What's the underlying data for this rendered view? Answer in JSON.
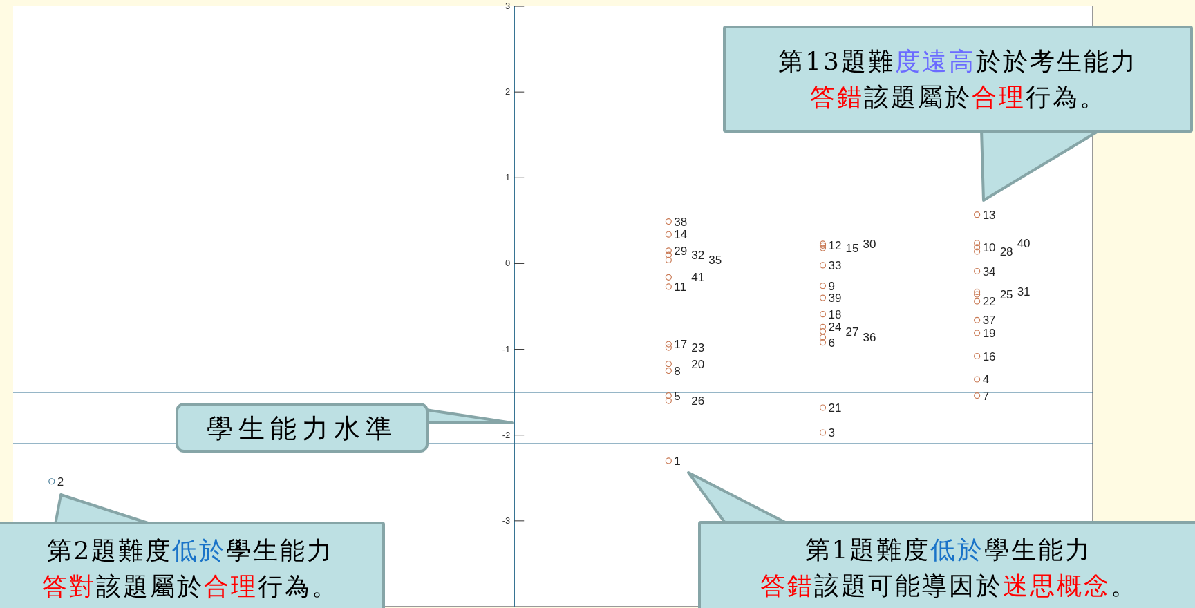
{
  "chart_data": {
    "type": "scatter",
    "categories": [
      null,
      null,
      null,
      null,
      null,
      null,
      null,
      null,
      null,
      null,
      null,
      null,
      null,
      null
    ],
    "ylim": [
      -4,
      3
    ],
    "yticks": [
      -3,
      -2,
      -1,
      0,
      1,
      2,
      3
    ],
    "tick_labels": "y",
    "marker": "circle",
    "series": [
      {
        "name": "2",
        "color": "#4a7f9a",
        "values": [
          -2.54,
          null,
          null,
          null,
          null,
          null,
          null,
          null,
          null,
          null,
          null,
          null,
          null,
          null
        ]
      },
      {
        "name": "38",
        "color": "#c97a55",
        "values": [
          null,
          null,
          null,
          null,
          null,
          null,
          null,
          null,
          0.49,
          null,
          null,
          null,
          null,
          null
        ]
      },
      {
        "name": "14",
        "color": "#c97a55",
        "values": [
          null,
          null,
          null,
          null,
          null,
          null,
          null,
          null,
          0.34,
          null,
          null,
          null,
          null,
          null
        ]
      },
      {
        "name": "29",
        "color": "#c97a55",
        "values": [
          null,
          null,
          null,
          null,
          null,
          null,
          null,
          null,
          0.15,
          null,
          null,
          null,
          null,
          null
        ]
      },
      {
        "name": "32",
        "color": "#c97a55",
        "values": [
          null,
          null,
          null,
          null,
          null,
          null,
          null,
          null,
          0.1,
          null,
          null,
          null,
          null,
          null
        ]
      },
      {
        "name": "35",
        "color": "#c97a55",
        "values": [
          null,
          null,
          null,
          null,
          null,
          null,
          null,
          null,
          0.04,
          null,
          null,
          null,
          null,
          null
        ]
      },
      {
        "name": "11",
        "color": "#c97a55",
        "values": [
          null,
          null,
          null,
          null,
          null,
          null,
          null,
          null,
          -0.27,
          null,
          null,
          null,
          null,
          null
        ]
      },
      {
        "name": "41",
        "color": "#c97a55",
        "values": [
          null,
          null,
          null,
          null,
          null,
          null,
          null,
          null,
          -0.16,
          null,
          null,
          null,
          null,
          null
        ]
      },
      {
        "name": "17",
        "color": "#c97a55",
        "values": [
          null,
          null,
          null,
          null,
          null,
          null,
          null,
          null,
          -0.94,
          null,
          null,
          null,
          null,
          null
        ]
      },
      {
        "name": "23",
        "color": "#c97a55",
        "values": [
          null,
          null,
          null,
          null,
          null,
          null,
          null,
          null,
          -0.98,
          null,
          null,
          null,
          null,
          null
        ]
      },
      {
        "name": "8",
        "color": "#c97a55",
        "values": [
          null,
          null,
          null,
          null,
          null,
          null,
          null,
          null,
          -1.25,
          null,
          null,
          null,
          null,
          null
        ]
      },
      {
        "name": "20",
        "color": "#c97a55",
        "values": [
          null,
          null,
          null,
          null,
          null,
          null,
          null,
          null,
          -1.17,
          null,
          null,
          null,
          null,
          null
        ]
      },
      {
        "name": "5",
        "color": "#c97a55",
        "values": [
          null,
          null,
          null,
          null,
          null,
          null,
          null,
          null,
          -1.54,
          null,
          null,
          null,
          null,
          null
        ]
      },
      {
        "name": "26",
        "color": "#c97a55",
        "values": [
          null,
          null,
          null,
          null,
          null,
          null,
          null,
          null,
          -1.6,
          null,
          null,
          null,
          null,
          null
        ]
      },
      {
        "name": "1",
        "color": "#c97a55",
        "values": [
          null,
          null,
          null,
          null,
          null,
          null,
          null,
          null,
          -2.3,
          null,
          null,
          null,
          null,
          null
        ]
      },
      {
        "name": "12",
        "color": "#c97a55",
        "values": [
          null,
          null,
          null,
          null,
          null,
          null,
          null,
          null,
          null,
          null,
          0.21,
          null,
          null,
          null
        ]
      },
      {
        "name": "15",
        "color": "#c97a55",
        "values": [
          null,
          null,
          null,
          null,
          null,
          null,
          null,
          null,
          null,
          null,
          0.18,
          null,
          null,
          null
        ]
      },
      {
        "name": "30",
        "color": "#c97a55",
        "values": [
          null,
          null,
          null,
          null,
          null,
          null,
          null,
          null,
          null,
          null,
          0.23,
          null,
          null,
          null
        ]
      },
      {
        "name": "33",
        "color": "#c97a55",
        "values": [
          null,
          null,
          null,
          null,
          null,
          null,
          null,
          null,
          null,
          null,
          -0.02,
          null,
          null,
          null
        ]
      },
      {
        "name": "9",
        "color": "#c97a55",
        "values": [
          null,
          null,
          null,
          null,
          null,
          null,
          null,
          null,
          null,
          null,
          -0.26,
          null,
          null,
          null
        ]
      },
      {
        "name": "39",
        "color": "#c97a55",
        "values": [
          null,
          null,
          null,
          null,
          null,
          null,
          null,
          null,
          null,
          null,
          -0.4,
          null,
          null,
          null
        ]
      },
      {
        "name": "18",
        "color": "#c97a55",
        "values": [
          null,
          null,
          null,
          null,
          null,
          null,
          null,
          null,
          null,
          null,
          -0.59,
          null,
          null,
          null
        ]
      },
      {
        "name": "24",
        "color": "#c97a55",
        "values": [
          null,
          null,
          null,
          null,
          null,
          null,
          null,
          null,
          null,
          null,
          -0.74,
          null,
          null,
          null
        ]
      },
      {
        "name": "27",
        "color": "#c97a55",
        "values": [
          null,
          null,
          null,
          null,
          null,
          null,
          null,
          null,
          null,
          null,
          -0.79,
          null,
          null,
          null
        ]
      },
      {
        "name": "36",
        "color": "#c97a55",
        "values": [
          null,
          null,
          null,
          null,
          null,
          null,
          null,
          null,
          null,
          null,
          -0.86,
          null,
          null,
          null
        ]
      },
      {
        "name": "6",
        "color": "#c97a55",
        "values": [
          null,
          null,
          null,
          null,
          null,
          null,
          null,
          null,
          null,
          null,
          -0.92,
          null,
          null,
          null
        ]
      },
      {
        "name": "21",
        "color": "#c97a55",
        "values": [
          null,
          null,
          null,
          null,
          null,
          null,
          null,
          null,
          null,
          null,
          -1.68,
          null,
          null,
          null
        ]
      },
      {
        "name": "3",
        "color": "#c97a55",
        "values": [
          null,
          null,
          null,
          null,
          null,
          null,
          null,
          null,
          null,
          null,
          -1.97,
          null,
          null,
          null
        ]
      },
      {
        "name": "13",
        "color": "#c97a55",
        "values": [
          null,
          null,
          null,
          null,
          null,
          null,
          null,
          null,
          null,
          null,
          null,
          null,
          0.57,
          null
        ]
      },
      {
        "name": "10",
        "color": "#c97a55",
        "values": [
          null,
          null,
          null,
          null,
          null,
          null,
          null,
          null,
          null,
          null,
          null,
          null,
          0.19,
          null
        ]
      },
      {
        "name": "28",
        "color": "#c97a55",
        "values": [
          null,
          null,
          null,
          null,
          null,
          null,
          null,
          null,
          null,
          null,
          null,
          null,
          0.14,
          null
        ]
      },
      {
        "name": "40",
        "color": "#c97a55",
        "values": [
          null,
          null,
          null,
          null,
          null,
          null,
          null,
          null,
          null,
          null,
          null,
          null,
          0.24,
          null
        ]
      },
      {
        "name": "34",
        "color": "#c97a55",
        "values": [
          null,
          null,
          null,
          null,
          null,
          null,
          null,
          null,
          null,
          null,
          null,
          null,
          -0.09,
          null
        ]
      },
      {
        "name": "22",
        "color": "#c97a55",
        "values": [
          null,
          null,
          null,
          null,
          null,
          null,
          null,
          null,
          null,
          null,
          null,
          null,
          -0.44,
          null
        ]
      },
      {
        "name": "25",
        "color": "#c97a55",
        "values": [
          null,
          null,
          null,
          null,
          null,
          null,
          null,
          null,
          null,
          null,
          null,
          null,
          -0.36,
          null
        ]
      },
      {
        "name": "31",
        "color": "#c97a55",
        "values": [
          null,
          null,
          null,
          null,
          null,
          null,
          null,
          null,
          null,
          null,
          null,
          null,
          -0.33,
          null
        ]
      },
      {
        "name": "37",
        "color": "#c97a55",
        "values": [
          null,
          null,
          null,
          null,
          null,
          null,
          null,
          null,
          null,
          null,
          null,
          null,
          -0.66,
          null
        ]
      },
      {
        "name": "19",
        "color": "#c97a55",
        "values": [
          null,
          null,
          null,
          null,
          null,
          null,
          null,
          null,
          null,
          null,
          null,
          null,
          -0.81,
          null
        ]
      },
      {
        "name": "16",
        "color": "#c97a55",
        "values": [
          null,
          null,
          null,
          null,
          null,
          null,
          null,
          null,
          null,
          null,
          null,
          null,
          -1.08,
          null
        ]
      },
      {
        "name": "4",
        "color": "#c97a55",
        "values": [
          null,
          null,
          null,
          null,
          null,
          null,
          null,
          null,
          null,
          null,
          null,
          null,
          -1.35,
          null
        ]
      },
      {
        "name": "7",
        "color": "#c97a55",
        "values": [
          null,
          null,
          null,
          null,
          null,
          null,
          null,
          null,
          null,
          null,
          null,
          null,
          -1.54,
          null
        ]
      }
    ],
    "ref_lines": [
      {
        "axis": "y",
        "value": -1.5,
        "color": "#2f6f8f"
      },
      {
        "axis": "y",
        "value": -2.1,
        "color": "#2f6f8f"
      }
    ],
    "annotations": [
      "第13題難度遠高於於考生能力答錯該題屬於合理行為。",
      "學生能力水準",
      "第2題難度低於學生能力答對該題屬於合理行為。",
      "第1題難度低於學生能力答錯該題可能導因於迷思概念。"
    ]
  }
}
